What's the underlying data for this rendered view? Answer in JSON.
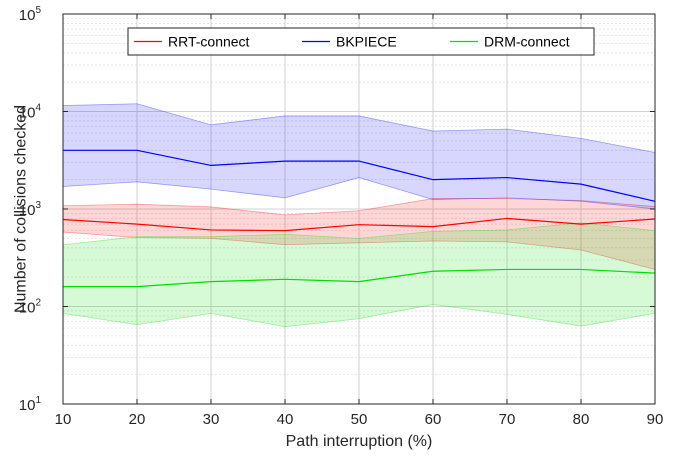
{
  "chart_data": {
    "type": "line",
    "title": "",
    "xlabel": "Path interruption (%)",
    "ylabel": "Number of collisions checked",
    "x": [
      10,
      20,
      30,
      40,
      50,
      60,
      70,
      80,
      90
    ],
    "xlim": [
      10,
      90
    ],
    "ylim": [
      10,
      100000
    ],
    "yscale": "log",
    "x_ticks": [
      "10",
      "20",
      "30",
      "40",
      "50",
      "60",
      "70",
      "80",
      "90"
    ],
    "y_ticks": [
      {
        "base": "10",
        "exp": "1"
      },
      {
        "base": "10",
        "exp": "2"
      },
      {
        "base": "10",
        "exp": "3"
      },
      {
        "base": "10",
        "exp": "4"
      },
      {
        "base": "10",
        "exp": "5"
      }
    ],
    "grid": true,
    "legend": "top",
    "series": [
      {
        "name": "RRT-connect",
        "color": "#ff0000",
        "values": [
          780,
          700,
          610,
          600,
          690,
          660,
          800,
          700,
          790
        ],
        "upper": [
          1080,
          1120,
          1050,
          870,
          960,
          1280,
          1280,
          1220,
          1060
        ],
        "lower": [
          580,
          510,
          500,
          430,
          450,
          470,
          460,
          380,
          240
        ]
      },
      {
        "name": "BKPIECE",
        "color": "#0000ff",
        "values": [
          4000,
          4000,
          2800,
          3100,
          3100,
          2000,
          2100,
          1800,
          1200
        ],
        "upper": [
          11500,
          12000,
          7300,
          9000,
          9000,
          6300,
          6600,
          5300,
          3800
        ],
        "lower": [
          1700,
          1900,
          1600,
          1300,
          2100,
          1250,
          1300,
          1200,
          1000
        ]
      },
      {
        "name": "DRM-connect",
        "color": "#00dd00",
        "values": [
          160,
          160,
          180,
          190,
          180,
          230,
          240,
          240,
          220
        ],
        "upper": [
          430,
          520,
          520,
          550,
          500,
          590,
          610,
          720,
          600
        ],
        "lower": [
          85,
          65,
          85,
          62,
          75,
          105,
          83,
          63,
          85
        ]
      }
    ]
  }
}
